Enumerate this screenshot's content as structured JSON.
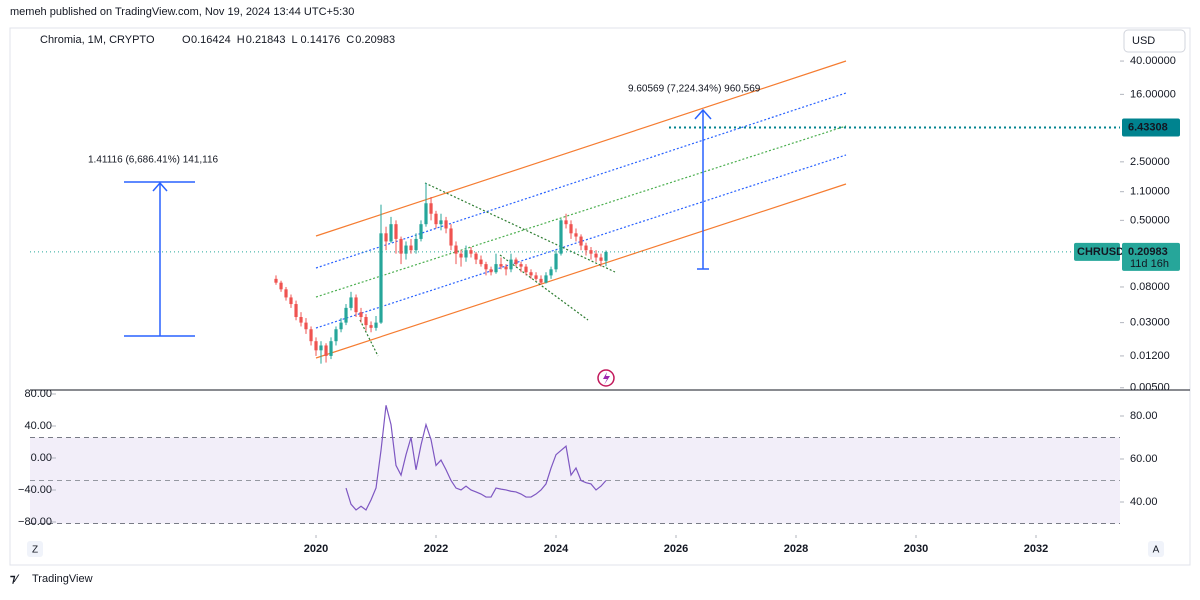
{
  "header": {
    "publisher": "memeh published on TradingView.com, Nov 19, 2024 13:44 UTC+5:30",
    "symbol": "Chromia, 1M, CRYPTO",
    "ohlc_labels": [
      "O",
      "H",
      "L",
      "C"
    ],
    "currency": "USD"
  },
  "footer": {
    "brand": "TradingView",
    "left_button": "Z",
    "right_button": "A"
  },
  "chart_data": [
    {
      "type": "candlestick",
      "log_scale": true,
      "up_color": "#26a69a",
      "down_color": "#ef5350",
      "x": [
        2019.333,
        2019.417,
        2019.5,
        2019.583,
        2019.667,
        2019.75,
        2019.833,
        2019.917,
        2020.0,
        2020.083,
        2020.167,
        2020.25,
        2020.333,
        2020.417,
        2020.5,
        2020.583,
        2020.667,
        2020.75,
        2020.833,
        2020.917,
        2021.0,
        2021.083,
        2021.167,
        2021.25,
        2021.333,
        2021.417,
        2021.5,
        2021.583,
        2021.667,
        2021.75,
        2021.833,
        2021.917,
        2022.0,
        2022.083,
        2022.167,
        2022.25,
        2022.333,
        2022.417,
        2022.5,
        2022.583,
        2022.667,
        2022.75,
        2022.833,
        2022.917,
        2023.0,
        2023.083,
        2023.167,
        2023.25,
        2023.333,
        2023.417,
        2023.5,
        2023.583,
        2023.667,
        2023.75,
        2023.833,
        2023.917,
        2024.0,
        2024.083,
        2024.167,
        2024.25,
        2024.333,
        2024.417,
        2024.5,
        2024.583,
        2024.667,
        2024.75,
        2024.833
      ],
      "open": [
        0.1,
        0.09,
        0.075,
        0.06,
        0.05,
        0.035,
        0.03,
        0.025,
        0.018,
        0.014,
        0.016,
        0.012,
        0.018,
        0.025,
        0.03,
        0.045,
        0.06,
        0.04,
        0.035,
        0.028,
        0.026,
        0.03,
        0.35,
        0.28,
        0.45,
        0.3,
        0.2,
        0.25,
        0.22,
        0.3,
        0.45,
        0.8,
        0.6,
        0.45,
        0.5,
        0.4,
        0.25,
        0.2,
        0.18,
        0.22,
        0.2,
        0.17,
        0.15,
        0.13,
        0.12,
        0.15,
        0.14,
        0.13,
        0.17,
        0.15,
        0.14,
        0.12,
        0.11,
        0.1,
        0.09,
        0.11,
        0.13,
        0.2,
        0.5,
        0.45,
        0.35,
        0.32,
        0.25,
        0.22,
        0.2,
        0.18,
        0.16424
      ],
      "high": [
        0.11,
        0.095,
        0.08,
        0.065,
        0.055,
        0.04,
        0.034,
        0.027,
        0.02,
        0.018,
        0.017,
        0.02,
        0.027,
        0.034,
        0.05,
        0.07,
        0.065,
        0.045,
        0.038,
        0.031,
        0.036,
        0.77,
        0.42,
        0.55,
        0.5,
        0.32,
        0.28,
        0.3,
        0.35,
        0.5,
        1.4,
        0.95,
        0.65,
        0.6,
        0.55,
        0.45,
        0.28,
        0.22,
        0.25,
        0.24,
        0.21,
        0.19,
        0.16,
        0.14,
        0.2,
        0.18,
        0.15,
        0.2,
        0.18,
        0.16,
        0.15,
        0.13,
        0.12,
        0.11,
        0.12,
        0.14,
        0.22,
        0.52,
        0.6,
        0.5,
        0.4,
        0.34,
        0.27,
        0.24,
        0.22,
        0.2,
        0.21843
      ],
      "low": [
        0.085,
        0.07,
        0.055,
        0.045,
        0.032,
        0.027,
        0.022,
        0.016,
        0.012,
        0.0097,
        0.01,
        0.011,
        0.016,
        0.023,
        0.028,
        0.042,
        0.035,
        0.03,
        0.024,
        0.023,
        0.024,
        0.029,
        0.22,
        0.27,
        0.2,
        0.15,
        0.17,
        0.2,
        0.2,
        0.28,
        0.42,
        0.5,
        0.4,
        0.38,
        0.35,
        0.22,
        0.15,
        0.14,
        0.16,
        0.18,
        0.15,
        0.14,
        0.11,
        0.11,
        0.115,
        0.13,
        0.11,
        0.12,
        0.14,
        0.12,
        0.11,
        0.1,
        0.095,
        0.085,
        0.088,
        0.1,
        0.12,
        0.19,
        0.4,
        0.3,
        0.28,
        0.22,
        0.19,
        0.17,
        0.16,
        0.14,
        0.14176
      ],
      "close": [
        0.09,
        0.075,
        0.06,
        0.05,
        0.035,
        0.03,
        0.025,
        0.018,
        0.014,
        0.016,
        0.012,
        0.018,
        0.025,
        0.03,
        0.045,
        0.06,
        0.04,
        0.035,
        0.028,
        0.026,
        0.03,
        0.35,
        0.28,
        0.45,
        0.3,
        0.2,
        0.25,
        0.22,
        0.3,
        0.45,
        0.8,
        0.6,
        0.45,
        0.5,
        0.4,
        0.25,
        0.2,
        0.18,
        0.22,
        0.2,
        0.17,
        0.15,
        0.13,
        0.12,
        0.15,
        0.14,
        0.13,
        0.17,
        0.15,
        0.14,
        0.12,
        0.11,
        0.1,
        0.09,
        0.11,
        0.13,
        0.2,
        0.5,
        0.45,
        0.35,
        0.32,
        0.25,
        0.22,
        0.2,
        0.18,
        0.16424,
        0.20983
      ],
      "xlim": [
        2015.233,
        2033.4
      ],
      "xticks": [
        2020,
        2022,
        2024,
        2026,
        2028,
        2030,
        2032
      ],
      "ylim": [
        0.0047,
        94
      ],
      "yticks": [
        {
          "value": 40,
          "label": "40.00000"
        },
        {
          "value": 16,
          "label": "16.00000"
        },
        {
          "value": 2.5,
          "label": "2.50000"
        },
        {
          "value": 1.1,
          "label": "1.10000"
        },
        {
          "value": 0.5,
          "label": "0.50000"
        },
        {
          "value": 0.08,
          "label": "0.08000"
        },
        {
          "value": 0.03,
          "label": "0.03000"
        },
        {
          "value": 0.012,
          "label": "0.01200"
        },
        {
          "value": 0.005,
          "label": "0.00500"
        }
      ],
      "price_line": 6.43308,
      "price_line_color": "#00838f",
      "last_price_symbol": "CHRUSD",
      "countdown": "11d 16h",
      "last_price_color": "#26a69a",
      "annotations": [
        "1.41116 (6,686.41%) 141,116",
        "9.60569 (7,224.34%) 960,569"
      ]
    },
    {
      "type": "line",
      "x": [
        2020.5,
        2020.583,
        2020.667,
        2020.75,
        2020.833,
        2020.917,
        2021.0,
        2021.083,
        2021.167,
        2021.25,
        2021.333,
        2021.417,
        2021.5,
        2021.583,
        2021.667,
        2021.75,
        2021.833,
        2021.917,
        2022.0,
        2022.083,
        2022.167,
        2022.25,
        2022.333,
        2022.417,
        2022.5,
        2022.583,
        2022.667,
        2022.75,
        2022.833,
        2022.917,
        2023.0,
        2023.083,
        2023.167,
        2023.25,
        2023.333,
        2023.417,
        2023.5,
        2023.583,
        2023.667,
        2023.75,
        2023.833,
        2023.917,
        2024.0,
        2024.083,
        2024.167,
        2024.25,
        2024.333,
        2024.417,
        2024.5,
        2024.583,
        2024.667,
        2024.75,
        2024.833
      ],
      "series": [
        {
          "color": "#7e57c2",
          "axis": "y2",
          "values": [
            46.5,
            39,
            36.3,
            38,
            36.3,
            41,
            46.5,
            64,
            85,
            76,
            57,
            52.5,
            62,
            70,
            55,
            66.5,
            76,
            69,
            57,
            59.5,
            55,
            50,
            46.5,
            45.6,
            47.4,
            45.6,
            44.7,
            43.7,
            42.3,
            42.3,
            46.5,
            46,
            45.6,
            45,
            44.7,
            43.7,
            42.3,
            42.3,
            43.7,
            45.6,
            48.4,
            55.8,
            62,
            64,
            66,
            52.5,
            55.8,
            50,
            49,
            48.4,
            45.6,
            47.4,
            50
          ]
        }
      ],
      "bands": [
        30,
        70
      ],
      "midline": 50,
      "ylim": [
        -96.25,
        85
      ],
      "yticks": [
        {
          "value": 80,
          "label": "80.00"
        },
        {
          "value": 40,
          "label": "40.00"
        },
        {
          "value": 0,
          "label": "0.00"
        },
        {
          "value": -40,
          "label": "−40.00"
        },
        {
          "value": -80,
          "label": "−80.00"
        }
      ],
      "y2lim": [
        24.65,
        92.1
      ],
      "y2ticks": [
        {
          "value": 80,
          "label": "80.00"
        },
        {
          "value": 60,
          "label": "60.00"
        },
        {
          "value": 40,
          "label": "40.00"
        }
      ]
    }
  ]
}
